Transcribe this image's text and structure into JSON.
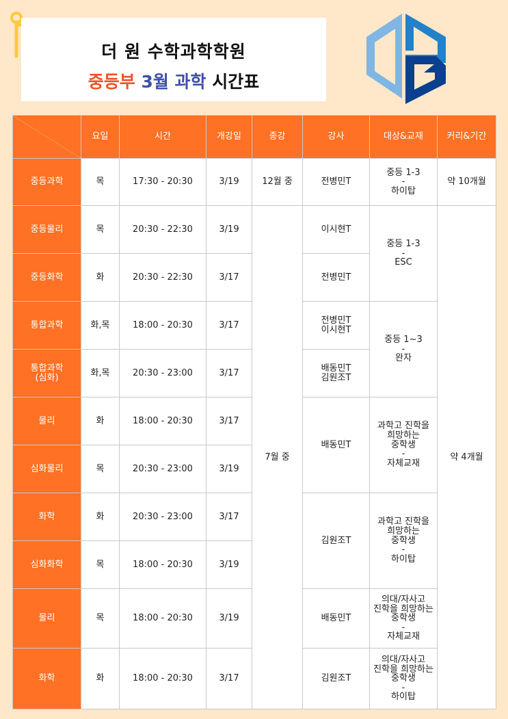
{
  "title": {
    "line1": "더 원 수학과학학원",
    "line2_part1": "중등부",
    "line2_part2": "3월 과학",
    "line2_part3": "시간표"
  },
  "logo": {
    "name": "logo",
    "colors": [
      "#7fb6e3",
      "#2281c8",
      "#0b3f8f"
    ]
  },
  "colors": {
    "header": "#ff7124",
    "background": "#fee8c9"
  },
  "table": {
    "headers": [
      "",
      "요일",
      "시간",
      "개강일",
      "종강",
      "강사",
      "대상&교재",
      "커리&기간"
    ],
    "rows": [
      {
        "subject": "중등과학",
        "day": "목",
        "time": "17:30 - 20:30",
        "start": "3/19",
        "end": "12월 중",
        "teacher": "전병민T",
        "target": "중등 1-3\n-\n하이탑",
        "duration": "약 10개월"
      },
      {
        "subject": "중등물리",
        "day": "목",
        "time": "20:30 - 22:30",
        "start": "3/19",
        "end": "7월 중",
        "teacher": "이시현T",
        "target": "중등 1-3\n-\nESC",
        "duration": "약 4개월"
      },
      {
        "subject": "중등화학",
        "day": "화",
        "time": "20:30 - 22:30",
        "start": "3/17",
        "teacher": "전병민T"
      },
      {
        "subject": "통합과학",
        "day": "화,목",
        "time": "18:00 - 20:30",
        "start": "3/17",
        "teacher": "전병민T\n이시현T",
        "target": "중등 1~3\n-\n완자"
      },
      {
        "subject": "통합과학\n(심화)",
        "day": "화,목",
        "time": "20:30 - 23:00",
        "start": "3/17",
        "teacher": "배동민T\n김원조T"
      },
      {
        "subject": "물리",
        "day": "화",
        "time": "18:00 - 20:30",
        "start": "3/17",
        "teacher": "배동민T",
        "target": "과학고 진학을\n희망하는\n중학생\n-\n자체교재"
      },
      {
        "subject": "심화물리",
        "day": "목",
        "time": "20:30 - 23:00",
        "start": "3/19"
      },
      {
        "subject": "화학",
        "day": "화",
        "time": "20:30 - 23:00",
        "start": "3/17",
        "teacher": "김원조T",
        "target": "과학고 진학을\n희망하는\n중학생\n-\n하이탑"
      },
      {
        "subject": "심화화학",
        "day": "목",
        "time": "18:00 - 20:30",
        "start": "3/19"
      },
      {
        "subject": "물리",
        "day": "목",
        "time": "18:00 - 20:30",
        "start": "3/19",
        "teacher": "배동민T",
        "target": "의대/자사고\n진학을 희망하는\n중학생\n-\n자체교재"
      },
      {
        "subject": "화학",
        "day": "화",
        "time": "18:00 - 20:30",
        "start": "3/17",
        "teacher": "김원조T",
        "target": "의대/자사고\n진학을 희망하는\n중학생\n-\n하이탑"
      }
    ]
  }
}
